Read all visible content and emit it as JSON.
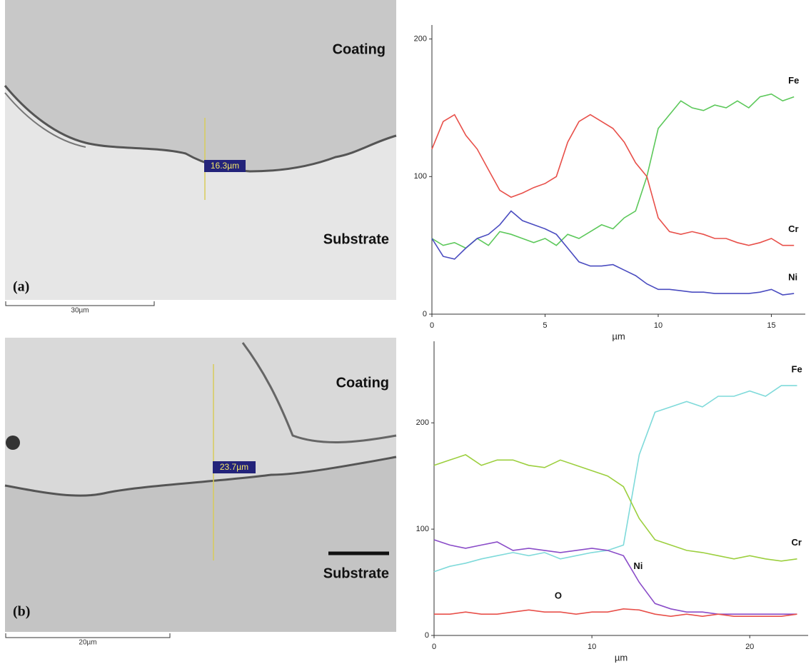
{
  "panels": [
    {
      "label": "(a)",
      "measurement": "16.3µm",
      "scale_bar": "30µm",
      "regions": [
        "Coating",
        "Substrate"
      ]
    },
    {
      "label": "(b)",
      "measurement": "23.7µm",
      "scale_bar": "20µm",
      "regions": [
        "Coating",
        "Substrate"
      ]
    }
  ],
  "chart_data": [
    {
      "type": "line",
      "x_label": "µm",
      "x": [
        0,
        0.5,
        1,
        1.5,
        2,
        2.5,
        3,
        3.5,
        4,
        4.5,
        5,
        5.5,
        6,
        6.5,
        7,
        7.5,
        8,
        8.5,
        9,
        9.5,
        10,
        10.5,
        11,
        11.5,
        12,
        12.5,
        13,
        13.5,
        14,
        14.5,
        15,
        15.5,
        16
      ],
      "series": [
        {
          "name": "Fe",
          "color": "#5cc85a",
          "values": [
            55,
            50,
            52,
            48,
            55,
            50,
            60,
            58,
            55,
            52,
            55,
            50,
            58,
            55,
            60,
            65,
            62,
            70,
            75,
            100,
            135,
            145,
            155,
            150,
            148,
            152,
            150,
            155,
            150,
            158,
            160,
            155,
            158
          ]
        },
        {
          "name": "Cr",
          "color": "#e8504a",
          "values": [
            120,
            140,
            145,
            130,
            120,
            105,
            90,
            85,
            88,
            92,
            95,
            100,
            125,
            140,
            145,
            140,
            135,
            125,
            110,
            100,
            70,
            60,
            58,
            60,
            58,
            55,
            55,
            52,
            50,
            52,
            55,
            50,
            50
          ]
        },
        {
          "name": "Ni",
          "color": "#4a4cc0",
          "values": [
            55,
            42,
            40,
            48,
            55,
            58,
            65,
            75,
            68,
            65,
            62,
            58,
            48,
            38,
            35,
            35,
            36,
            32,
            28,
            22,
            18,
            18,
            17,
            16,
            16,
            15,
            15,
            15,
            15,
            16,
            18,
            14,
            15
          ]
        }
      ],
      "xlim": [
        0,
        16.5
      ],
      "ylim": [
        0,
        205
      ],
      "xticks": [
        0,
        5,
        10,
        15
      ],
      "yticks": [
        0,
        100,
        200
      ]
    },
    {
      "type": "line",
      "x_label": "µm",
      "x": [
        0,
        1,
        2,
        3,
        4,
        5,
        6,
        7,
        8,
        9,
        10,
        11,
        12,
        13,
        14,
        15,
        16,
        17,
        18,
        19,
        20,
        21,
        22,
        23
      ],
      "series": [
        {
          "name": "Fe",
          "color": "#7fdada",
          "values": [
            60,
            65,
            68,
            72,
            75,
            78,
            75,
            78,
            72,
            75,
            78,
            80,
            85,
            170,
            210,
            215,
            220,
            215,
            225,
            225,
            230,
            225,
            235,
            235
          ]
        },
        {
          "name": "Cr",
          "color": "#9ccf3e",
          "values": [
            160,
            165,
            170,
            160,
            165,
            165,
            160,
            158,
            165,
            160,
            155,
            150,
            140,
            110,
            90,
            85,
            80,
            78,
            75,
            72,
            75,
            72,
            70,
            72
          ]
        },
        {
          "name": "Ni",
          "color": "#8a4cc8",
          "values": [
            90,
            85,
            82,
            85,
            88,
            80,
            82,
            80,
            78,
            80,
            82,
            80,
            75,
            50,
            30,
            25,
            22,
            22,
            20,
            20,
            20,
            20,
            20,
            20
          ]
        },
        {
          "name": "O",
          "color": "#e8504a",
          "values": [
            20,
            20,
            22,
            20,
            20,
            22,
            24,
            22,
            22,
            20,
            22,
            22,
            25,
            24,
            20,
            18,
            20,
            18,
            20,
            18,
            18,
            18,
            18,
            20
          ]
        }
      ],
      "xlim": [
        0,
        23.7
      ],
      "ylim": [
        0,
        270
      ],
      "xticks": [
        0,
        10,
        20
      ],
      "yticks": [
        0,
        100,
        200
      ]
    }
  ]
}
